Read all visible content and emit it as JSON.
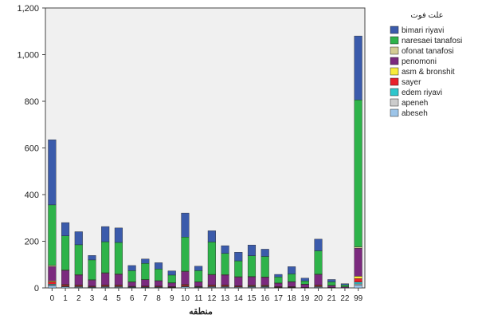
{
  "chart_data": {
    "type": "bar",
    "stacked": true,
    "xlabel": "منطقه",
    "ylabel": "",
    "ylim": [
      0,
      1200
    ],
    "yticks": [
      0,
      200,
      400,
      600,
      800,
      1000,
      1200
    ],
    "ytick_labels": [
      "0",
      "200",
      "400",
      "600",
      "800",
      "1,000",
      "1,200"
    ],
    "grid": false,
    "legend_title": "علت فوت",
    "legend_position": "right",
    "background_color": "#f0f0f0",
    "categories": [
      "0",
      "1",
      "2",
      "3",
      "4",
      "5",
      "6",
      "7",
      "8",
      "9",
      "10",
      "11",
      "12",
      "13",
      "14",
      "15",
      "16",
      "17",
      "18",
      "19",
      "20",
      "21",
      "22",
      "99"
    ],
    "series": [
      {
        "name": "abeseh",
        "color": "#9cc4e8",
        "values": [
          10,
          4,
          3,
          2,
          3,
          3,
          2,
          2,
          2,
          1,
          4,
          2,
          3,
          3,
          3,
          3,
          3,
          1,
          1,
          1,
          3,
          1,
          1,
          12
        ]
      },
      {
        "name": "apeneh",
        "color": "#cccccc",
        "values": [
          3,
          2,
          2,
          1,
          2,
          2,
          1,
          1,
          1,
          1,
          2,
          1,
          2,
          2,
          1,
          2,
          2,
          1,
          1,
          0,
          2,
          0,
          0,
          5
        ]
      },
      {
        "name": "edem riyavi",
        "color": "#2ec6cc",
        "values": [
          3,
          2,
          2,
          1,
          2,
          2,
          1,
          1,
          1,
          1,
          2,
          1,
          2,
          2,
          1,
          2,
          2,
          1,
          1,
          0,
          2,
          0,
          0,
          8
        ]
      },
      {
        "name": "sayer",
        "color": "#e8202a",
        "values": [
          10,
          5,
          4,
          3,
          4,
          4,
          2,
          3,
          3,
          2,
          5,
          2,
          4,
          4,
          3,
          3,
          3,
          2,
          2,
          1,
          4,
          1,
          0,
          15
        ]
      },
      {
        "name": "asm & bronshit",
        "color": "#f7ec3a",
        "values": [
          4,
          2,
          2,
          1,
          2,
          2,
          1,
          1,
          1,
          1,
          2,
          1,
          2,
          2,
          1,
          2,
          2,
          1,
          1,
          0,
          2,
          0,
          0,
          10
        ]
      },
      {
        "name": "penomoni",
        "color": "#7b2a7e",
        "values": [
          62,
          60,
          42,
          25,
          50,
          45,
          18,
          27,
          22,
          15,
          55,
          18,
          43,
          42,
          37,
          35,
          33,
          14,
          20,
          13,
          44,
          8,
          4,
          120
        ]
      },
      {
        "name": "ofonat tanafosi",
        "color": "#d4cc94",
        "values": [
          5,
          2,
          2,
          2,
          2,
          2,
          1,
          1,
          1,
          1,
          2,
          1,
          2,
          2,
          2,
          2,
          2,
          1,
          1,
          1,
          2,
          1,
          0,
          6
        ]
      },
      {
        "name": "naresaei tanafosi",
        "color": "#2eb34a",
        "values": [
          259,
          146,
          128,
          85,
          133,
          135,
          48,
          69,
          50,
          33,
          146,
          48,
          139,
          91,
          68,
          89,
          88,
          26,
          33,
          14,
          100,
          15,
          8,
          630
        ]
      },
      {
        "name": "bimari riyavi",
        "color": "#3b5bab",
        "values": [
          279,
          57,
          56,
          19,
          65,
          62,
          22,
          19,
          27,
          18,
          103,
          19,
          48,
          33,
          37,
          46,
          31,
          11,
          31,
          12,
          50,
          10,
          5,
          274
        ]
      }
    ],
    "legend_order": [
      "bimari riyavi",
      "naresaei tanafosi",
      "ofonat tanafosi",
      "penomoni",
      "asm & bronshit",
      "sayer",
      "edem riyavi",
      "apeneh",
      "abeseh"
    ]
  }
}
